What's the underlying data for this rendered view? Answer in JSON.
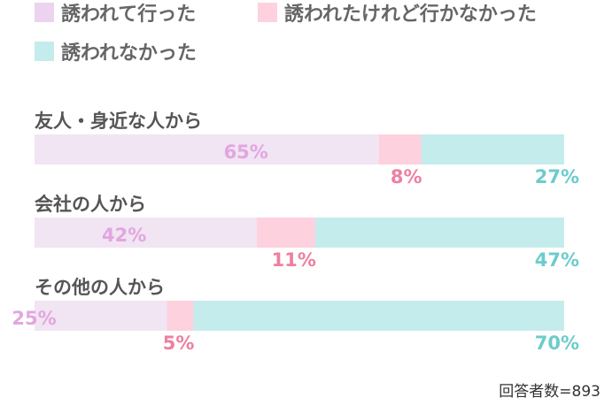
{
  "chart_data": {
    "type": "bar",
    "orientation": "horizontal",
    "stacked": true,
    "percent": true,
    "xlim": [
      0,
      100
    ],
    "grid": false,
    "legend_position": "top-left",
    "categories": [
      "友人・身近な人から",
      "会社の人から",
      "その他の人から"
    ],
    "series": [
      {
        "name": "誘われて行った",
        "values": [
          65,
          42,
          25
        ],
        "labels": [
          "65%",
          "42%",
          "25%"
        ],
        "color": "#f1e4f3",
        "label_color": "#e2a6e0"
      },
      {
        "name": "誘われたけれど行かなかった",
        "values": [
          8,
          11,
          5
        ],
        "labels": [
          "8%",
          "11%",
          "5%"
        ],
        "color": "#fdd1de",
        "label_color": "#ee7f9f"
      },
      {
        "name": "誘われなかった",
        "values": [
          27,
          47,
          70
        ],
        "labels": [
          "27%",
          "47%",
          "70%"
        ],
        "color": "#c5ecec",
        "label_color": "#6bcccc"
      }
    ],
    "legend_swatch_colors": [
      "#ecd3ef",
      "#fdd1de",
      "#c5ecec"
    ],
    "note": "回答者数=893"
  }
}
